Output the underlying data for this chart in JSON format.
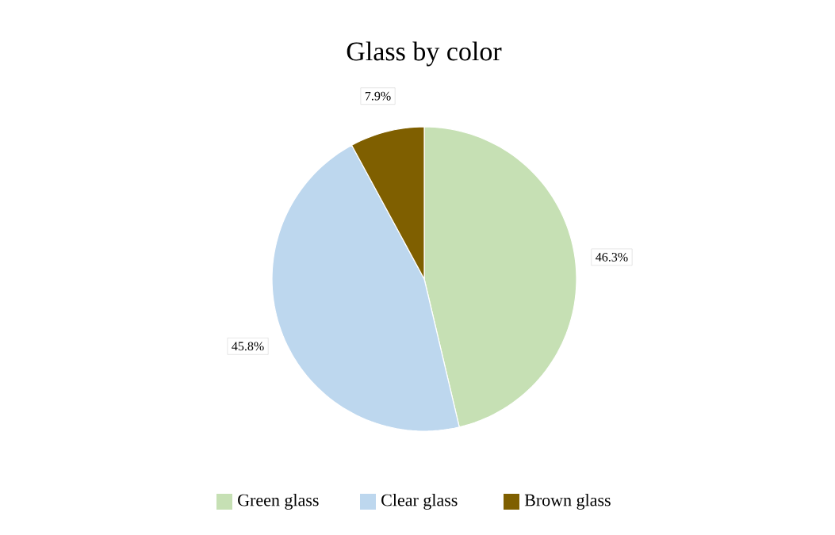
{
  "chart_data": {
    "type": "pie",
    "title": "Glass by color",
    "categories": [
      "Green glass",
      "Clear glass",
      "Brown glass"
    ],
    "values": [
      46.3,
      45.8,
      7.9
    ],
    "value_labels": [
      "46.3%",
      "45.8%",
      "7.9%"
    ],
    "colors": [
      "#c6e0b4",
      "#bdd7ee",
      "#7f5f00"
    ],
    "legend": "bottom"
  }
}
